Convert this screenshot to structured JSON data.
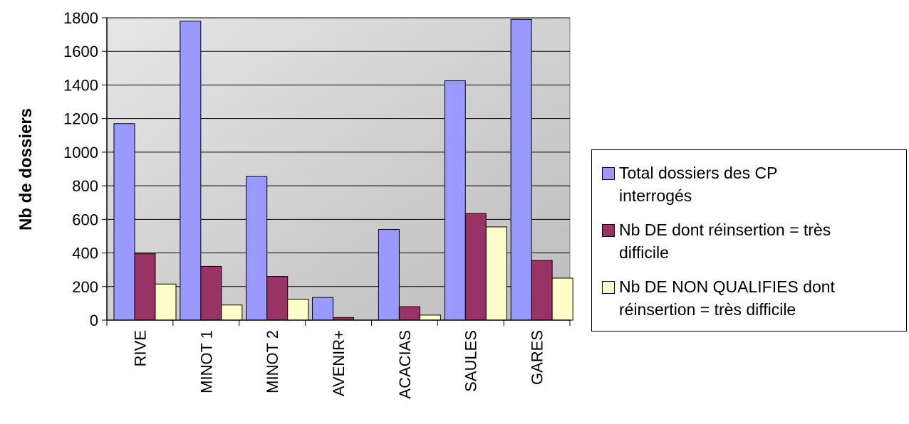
{
  "chart_data": {
    "type": "bar",
    "ylabel": "Nb de dossiers",
    "ylim": [
      0,
      1800
    ],
    "yticks": [
      "0",
      "200",
      "400",
      "600",
      "800",
      "1000",
      "1200",
      "1400",
      "1600",
      "1800"
    ],
    "categories": [
      "RIVE",
      "MINOT 1",
      "MINOT 2",
      "AVENIR+",
      "ACACIAS",
      "SAULES",
      "GARES"
    ],
    "series": [
      {
        "name": "Total dossiers des CP interrogés",
        "color": "#9999ff",
        "values": [
          1170,
          1780,
          855,
          135,
          540,
          1425,
          1790
        ]
      },
      {
        "name": "Nb DE dont réinsertion = très difficile",
        "color": "#993366",
        "values": [
          395,
          320,
          260,
          15,
          80,
          635,
          355
        ]
      },
      {
        "name": "Nb DE NON QUALIFIES dont réinsertion = très difficile",
        "color": "#ffffcc",
        "values": [
          215,
          90,
          125,
          0,
          30,
          555,
          250
        ]
      }
    ],
    "plot_background": "#c0c0c0",
    "grid": true,
    "legend_position": "right"
  },
  "legend": {
    "lines": [
      [
        "Total dossiers des CP",
        "interrogés"
      ],
      [
        "Nb DE dont réinsertion = très",
        "difficile"
      ],
      [
        "Nb DE NON QUALIFIES dont",
        "réinsertion = très difficile"
      ]
    ]
  }
}
